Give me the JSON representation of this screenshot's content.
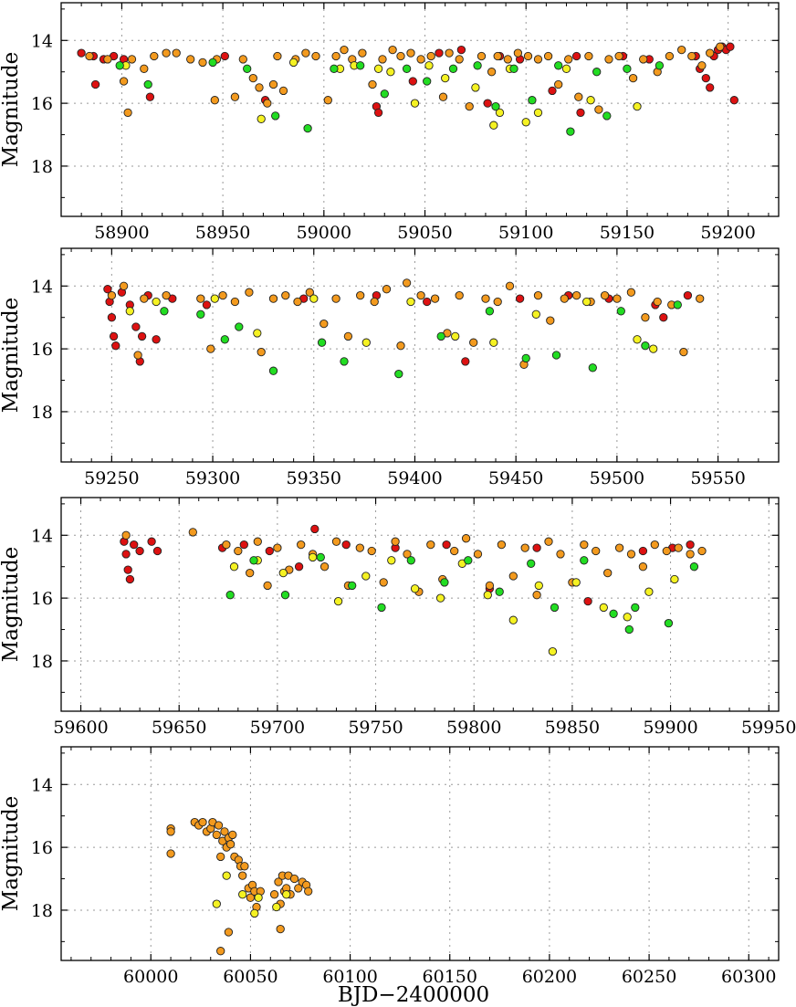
{
  "figure": {
    "xlabel": "BJD−2400000"
  },
  "colors": {
    "red": "#dd1111",
    "orange": "#f39a1e",
    "yellow": "#f5f222",
    "green": "#22dd22",
    "marker_edge": "#222222",
    "grid": "#999999"
  },
  "chart_data": [
    {
      "type": "scatter",
      "ylabel": "Magnitude",
      "xlim": [
        58870,
        59225
      ],
      "ylim": [
        19.6,
        12.8
      ],
      "y_inverted": true,
      "xticks": [
        58900,
        58950,
        59000,
        59050,
        59100,
        59150,
        59200
      ],
      "xtick_labels": [
        "58900",
        "58950",
        "59000",
        "59050",
        "59100",
        "59150",
        "59200"
      ],
      "yticks": [
        14,
        16,
        18
      ],
      "ytick_labels": [
        "14",
        "16",
        "18"
      ],
      "grid": true,
      "series": [
        {
          "color": "red",
          "x": [
            58880,
            58886,
            58887,
            58891,
            58896,
            58901,
            58914,
            58951,
            58971,
            59026,
            59027,
            59044,
            59057,
            59068,
            59081,
            59087,
            59097,
            59113,
            59125,
            59127,
            59148,
            59161,
            59184,
            59186,
            59189,
            59191,
            59193,
            59195,
            59197,
            59199,
            59201,
            59203
          ],
          "y": [
            14.4,
            14.5,
            15.4,
            14.6,
            14.5,
            14.6,
            15.8,
            14.5,
            15.9,
            16.1,
            16.3,
            15.3,
            14.4,
            14.3,
            16.0,
            14.5,
            14.6,
            15.6,
            14.5,
            16.3,
            14.5,
            14.6,
            14.5,
            14.9,
            15.2,
            15.5,
            14.5,
            14.3,
            14.2,
            14.3,
            14.2,
            15.9
          ]
        },
        {
          "color": "orange",
          "x": [
            58884,
            58893,
            58901,
            58903,
            58905,
            58911,
            58916,
            58922,
            58927,
            58934,
            58940,
            58946,
            58947,
            58956,
            58960,
            58965,
            58968,
            58972,
            58975,
            58977,
            58980,
            58986,
            58991,
            58996,
            59002,
            59006,
            59010,
            59014,
            59019,
            59024,
            59029,
            59034,
            59038,
            59043,
            59048,
            59053,
            59059,
            59062,
            59067,
            59072,
            59078,
            59083,
            59086,
            59091,
            59096,
            59101,
            59106,
            59111,
            59116,
            59121,
            59126,
            59131,
            59136,
            59141,
            59146,
            59153,
            59158,
            59165,
            59171,
            59177,
            59182,
            59187,
            59191,
            59196
          ],
          "y": [
            14.5,
            14.6,
            15.3,
            16.3,
            14.6,
            14.9,
            14.5,
            14.4,
            14.4,
            14.6,
            14.7,
            15.9,
            14.6,
            15.8,
            14.6,
            15.2,
            15.5,
            16.0,
            15.4,
            14.5,
            15.6,
            14.6,
            14.4,
            14.5,
            15.9,
            14.5,
            14.3,
            14.6,
            14.4,
            15.4,
            14.6,
            14.3,
            14.5,
            14.4,
            14.6,
            14.5,
            15.8,
            14.4,
            14.6,
            16.1,
            14.5,
            15.0,
            14.5,
            14.6,
            14.4,
            14.5,
            14.6,
            14.5,
            15.4,
            14.6,
            15.8,
            14.5,
            16.2,
            14.6,
            14.5,
            15.2,
            14.6,
            15.0,
            14.5,
            14.3,
            14.5,
            14.8,
            14.4,
            14.2
          ]
        },
        {
          "color": "yellow",
          "x": [
            58902,
            58969,
            58985,
            59008,
            59015,
            59027,
            59033,
            59045,
            59052,
            59060,
            59075,
            59084,
            59087,
            59092,
            59100,
            59106,
            59120,
            59132,
            59155
          ],
          "y": [
            14.8,
            16.5,
            14.7,
            14.9,
            14.8,
            14.9,
            15.0,
            16.0,
            14.8,
            15.2,
            15.5,
            16.7,
            16.3,
            14.9,
            16.6,
            16.3,
            14.9,
            15.9,
            16.1
          ]
        },
        {
          "color": "green",
          "x": [
            58899,
            58913,
            58945,
            58962,
            58976,
            58992,
            59005,
            59018,
            59030,
            59041,
            59051,
            59064,
            59076,
            59085,
            59094,
            59103,
            59116,
            59122,
            59135,
            59140,
            59150,
            59166
          ],
          "y": [
            14.8,
            15.4,
            14.7,
            14.9,
            16.4,
            16.8,
            14.9,
            14.8,
            15.7,
            14.9,
            15.3,
            14.9,
            14.8,
            16.1,
            14.9,
            15.9,
            14.8,
            16.9,
            15.0,
            16.4,
            14.9,
            14.8
          ]
        }
      ]
    },
    {
      "type": "scatter",
      "ylabel": "Magnitude",
      "xlim": [
        59225,
        59580
      ],
      "ylim": [
        19.6,
        12.8
      ],
      "y_inverted": true,
      "xticks": [
        59250,
        59300,
        59350,
        59400,
        59450,
        59500,
        59550
      ],
      "xtick_labels": [
        "59250",
        "59300",
        "59350",
        "59400",
        "59450",
        "59500",
        "59550"
      ],
      "yticks": [
        14,
        16,
        18
      ],
      "ytick_labels": [
        "14",
        "16",
        "18"
      ],
      "grid": true,
      "series": [
        {
          "color": "red",
          "x": [
            59248,
            59249,
            59250,
            59251,
            59252,
            59255,
            59259,
            59262,
            59264,
            59265,
            59268,
            59272,
            59280,
            59297,
            59345,
            59381,
            59406,
            59425,
            59452,
            59476,
            59496,
            59519,
            59523,
            59535
          ],
          "y": [
            14.1,
            14.5,
            15.0,
            15.6,
            15.9,
            14.2,
            14.6,
            15.3,
            16.4,
            15.6,
            14.3,
            15.7,
            14.4,
            14.6,
            14.4,
            14.3,
            14.5,
            16.4,
            14.4,
            14.3,
            14.4,
            14.6,
            15.0,
            14.3
          ]
        },
        {
          "color": "orange",
          "x": [
            59250,
            59256,
            59263,
            59266,
            59277,
            59294,
            59299,
            59305,
            59311,
            59318,
            59324,
            59330,
            59336,
            59342,
            59348,
            59355,
            59361,
            59367,
            59373,
            59380,
            59386,
            59393,
            59396,
            59403,
            59410,
            59416,
            59422,
            59429,
            59435,
            59441,
            59447,
            59454,
            59461,
            59467,
            59474,
            59480,
            59487,
            59494,
            59500,
            59507,
            59514,
            59520,
            59527,
            59533,
            59541
          ],
          "y": [
            14.3,
            14.0,
            16.2,
            14.4,
            14.3,
            14.4,
            16.0,
            14.3,
            14.5,
            14.2,
            16.1,
            14.4,
            14.3,
            14.5,
            14.2,
            15.2,
            14.4,
            15.6,
            14.3,
            14.5,
            14.1,
            15.9,
            13.9,
            14.3,
            14.4,
            15.5,
            14.3,
            15.8,
            14.4,
            14.5,
            14.0,
            16.5,
            14.3,
            15.1,
            14.4,
            14.3,
            14.5,
            14.3,
            14.4,
            14.2,
            15.0,
            14.5,
            14.6,
            16.1,
            14.4
          ]
        },
        {
          "color": "yellow",
          "x": [
            59259,
            59272,
            59301,
            59322,
            59350,
            59376,
            59398,
            59420,
            59439,
            59460,
            59485,
            59510,
            59518
          ],
          "y": [
            14.8,
            14.5,
            14.4,
            15.5,
            14.4,
            15.8,
            14.5,
            15.6,
            15.8,
            14.9,
            14.5,
            15.7,
            16.0
          ]
        },
        {
          "color": "green",
          "x": [
            59276,
            59294,
            59306,
            59313,
            59330,
            59354,
            59365,
            59392,
            59413,
            59437,
            59455,
            59470,
            59488,
            59502,
            59514,
            59530
          ],
          "y": [
            14.8,
            14.9,
            15.7,
            15.3,
            16.7,
            15.8,
            16.4,
            16.8,
            15.6,
            14.8,
            16.3,
            16.2,
            16.6,
            14.8,
            15.9,
            14.6
          ]
        }
      ]
    },
    {
      "type": "scatter",
      "ylabel": "Magnitude",
      "xlim": [
        59590,
        59955
      ],
      "ylim": [
        19.6,
        12.8
      ],
      "y_inverted": true,
      "xticks": [
        59600,
        59650,
        59700,
        59750,
        59800,
        59850,
        59900,
        59950
      ],
      "xtick_labels": [
        "59600",
        "59650",
        "59700",
        "59750",
        "59800",
        "59850",
        "59900",
        "59950"
      ],
      "yticks": [
        14,
        16,
        18
      ],
      "ytick_labels": [
        "14",
        "16",
        "18"
      ],
      "grid": true,
      "series": [
        {
          "color": "red",
          "x": [
            59622,
            59623,
            59624,
            59625,
            59627,
            59630,
            59636,
            59639,
            59672,
            59683,
            59696,
            59711,
            59719,
            59735,
            59760,
            59786,
            59808,
            59832,
            59858,
            59886,
            59901,
            59910
          ],
          "y": [
            14.2,
            14.6,
            15.1,
            15.4,
            14.3,
            14.5,
            14.2,
            14.5,
            14.4,
            14.3,
            14.5,
            15.0,
            13.8,
            14.3,
            14.4,
            14.3,
            15.7,
            14.4,
            16.1,
            14.5,
            14.4,
            14.3
          ]
        },
        {
          "color": "orange",
          "x": [
            59623,
            59657,
            59674,
            59680,
            59686,
            59690,
            59695,
            59700,
            59706,
            59712,
            59718,
            59724,
            59730,
            59736,
            59742,
            59748,
            59754,
            59760,
            59766,
            59772,
            59778,
            59784,
            59790,
            59796,
            59802,
            59808,
            59814,
            59820,
            59826,
            59832,
            59838,
            59844,
            59850,
            59856,
            59862,
            59868,
            59874,
            59880,
            59886,
            59892,
            59898,
            59904,
            59910,
            59916
          ],
          "y": [
            14.0,
            13.9,
            14.3,
            14.5,
            15.2,
            14.2,
            15.6,
            14.4,
            15.1,
            14.3,
            14.6,
            15.0,
            14.2,
            15.6,
            14.4,
            14.5,
            15.5,
            14.2,
            14.6,
            15.8,
            14.3,
            15.4,
            14.5,
            14.1,
            14.6,
            15.6,
            14.3,
            15.3,
            14.4,
            15.9,
            14.2,
            14.6,
            15.5,
            14.3,
            14.5,
            15.2,
            14.4,
            14.6,
            15.0,
            14.3,
            14.5,
            14.4,
            14.6,
            14.5
          ]
        },
        {
          "color": "yellow",
          "x": [
            59678,
            59690,
            59703,
            59718,
            59731,
            59745,
            59758,
            59770,
            59783,
            59794,
            59807,
            59820,
            59833,
            59840,
            59852,
            59866,
            59878,
            59889,
            59902
          ],
          "y": [
            15.0,
            14.8,
            15.2,
            14.7,
            16.1,
            15.3,
            14.8,
            15.7,
            16.0,
            14.9,
            15.9,
            16.7,
            15.6,
            17.7,
            15.5,
            16.3,
            16.6,
            15.8,
            15.4
          ]
        },
        {
          "color": "green",
          "x": [
            59676,
            59688,
            59704,
            59722,
            59738,
            59753,
            59768,
            59785,
            59797,
            59813,
            59829,
            59841,
            59856,
            59871,
            59879,
            59882,
            59899,
            59912
          ],
          "y": [
            15.9,
            14.8,
            15.9,
            14.7,
            15.6,
            16.3,
            14.8,
            15.5,
            14.8,
            15.8,
            14.9,
            16.3,
            14.8,
            16.5,
            17.0,
            16.3,
            16.8,
            15.0
          ]
        }
      ]
    },
    {
      "type": "scatter",
      "ylabel": "Magnitude",
      "xlim": [
        59955,
        60315
      ],
      "ylim": [
        19.6,
        12.8
      ],
      "y_inverted": true,
      "xticks": [
        60000,
        60050,
        60100,
        60150,
        60200,
        60250,
        60300
      ],
      "xtick_labels": [
        "60000",
        "60050",
        "60100",
        "60150",
        "60200",
        "60250",
        "60300"
      ],
      "yticks": [
        14,
        16,
        18
      ],
      "ytick_labels": [
        "14",
        "16",
        "18"
      ],
      "grid": true,
      "series": [
        {
          "color": "orange",
          "x": [
            60010,
            60010,
            60010,
            60022,
            60024,
            60026,
            60028,
            60030,
            60031,
            60033,
            60034,
            60035,
            60036,
            60037,
            60038,
            60039,
            60040,
            60041,
            60042,
            60044,
            60045,
            60046,
            60047,
            60049,
            60050,
            60051,
            60052,
            60053,
            60055,
            60062,
            60064,
            60065,
            60066,
            60067,
            60068,
            60069,
            60070,
            60072,
            60074,
            60076,
            60078,
            60079,
            60035,
            60039,
            60065
          ],
          "y": [
            15.4,
            15.5,
            16.2,
            15.2,
            15.3,
            15.2,
            15.5,
            15.4,
            15.2,
            15.6,
            15.3,
            16.3,
            15.8,
            15.5,
            16.0,
            15.7,
            15.9,
            15.6,
            16.3,
            16.4,
            16.6,
            16.9,
            16.6,
            17.3,
            17.6,
            17.2,
            17.4,
            17.9,
            17.4,
            17.5,
            17.1,
            17.8,
            16.9,
            17.4,
            17.3,
            16.9,
            17.5,
            17.0,
            17.3,
            17.1,
            17.2,
            17.4,
            19.3,
            18.7,
            18.6
          ]
        },
        {
          "color": "yellow",
          "x": [
            60033,
            60038,
            60046,
            60052,
            60054,
            60063,
            60068
          ],
          "y": [
            17.8,
            16.9,
            17.5,
            18.1,
            17.6,
            17.9,
            17.5
          ]
        }
      ]
    }
  ]
}
